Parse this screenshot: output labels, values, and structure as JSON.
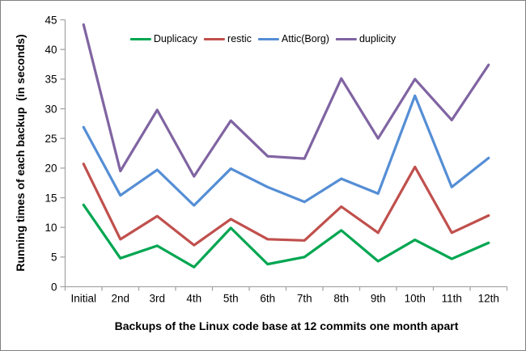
{
  "chart_data": {
    "type": "line",
    "title": "",
    "categories": [
      "Initial",
      "2nd",
      "3rd",
      "4th",
      "5th",
      "6th",
      "7th",
      "8th",
      "9th",
      "10th",
      "11th",
      "12th"
    ],
    "series": [
      {
        "name": "Duplicacy",
        "color": "#00A651",
        "values": [
          13.8,
          4.8,
          6.9,
          3.3,
          9.9,
          3.8,
          5.0,
          9.5,
          4.3,
          7.9,
          4.7,
          7.4
        ]
      },
      {
        "name": "restic",
        "color": "#C0504D",
        "values": [
          20.7,
          8.0,
          11.9,
          7.0,
          11.4,
          8.0,
          7.8,
          13.5,
          9.1,
          20.2,
          9.1,
          12.0
        ]
      },
      {
        "name": "Attic(Borg)",
        "color": "#558ED5",
        "values": [
          26.9,
          15.4,
          19.7,
          13.7,
          19.9,
          16.8,
          14.3,
          18.2,
          15.7,
          32.2,
          16.8,
          21.7
        ]
      },
      {
        "name": "duplicity",
        "color": "#8064A2",
        "values": [
          44.2,
          19.5,
          29.8,
          18.6,
          28.0,
          22.0,
          21.6,
          35.1,
          25.0,
          35.0,
          28.1,
          37.4
        ]
      }
    ],
    "xlabel": "Backups of the Linux code base at 12 commits one month apart",
    "ylabel": "Running times of each backup  (in seconds)",
    "ylim": [
      0,
      45
    ],
    "yticks": [
      0,
      5,
      10,
      15,
      20,
      25,
      30,
      35,
      40,
      45
    ],
    "grid": false,
    "legend_position": "top",
    "axis_color": "#A6A6A6",
    "text_color": "#000000",
    "line_width": 3.2
  }
}
